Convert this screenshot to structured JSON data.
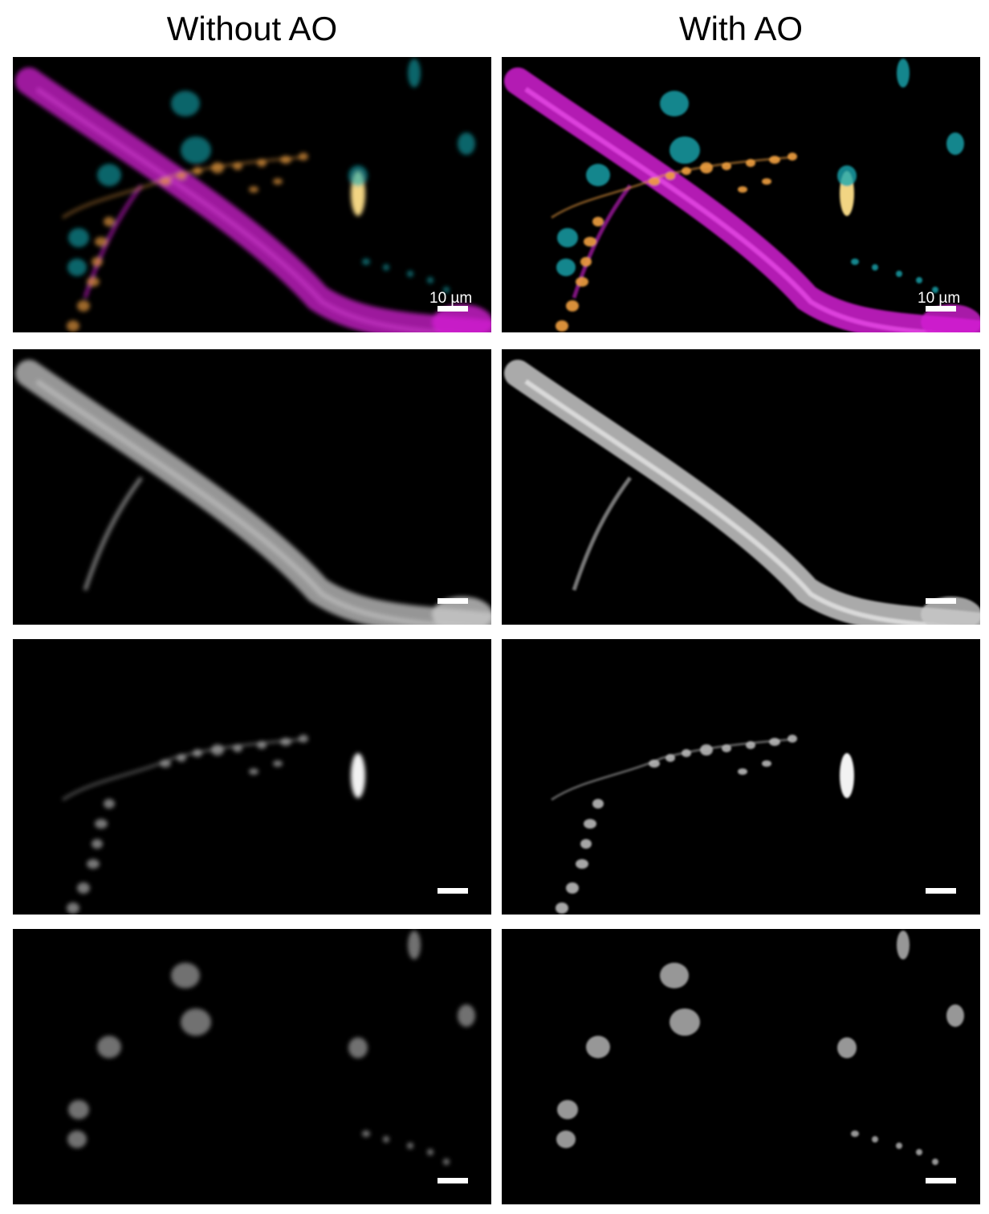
{
  "columns": [
    {
      "title": "Without AO",
      "key": "without"
    },
    {
      "title": "With AO",
      "key": "with"
    }
  ],
  "scale_label": "10 µm",
  "rows": [
    {
      "channel": "merge"
    },
    {
      "channel": "vessel"
    },
    {
      "channel": "axon"
    },
    {
      "channel": "nuclei"
    }
  ],
  "colors": {
    "vessel": "#d21fd2",
    "axon": "#f0a040",
    "nuclei": "#18a8b0",
    "background": "#000000"
  }
}
